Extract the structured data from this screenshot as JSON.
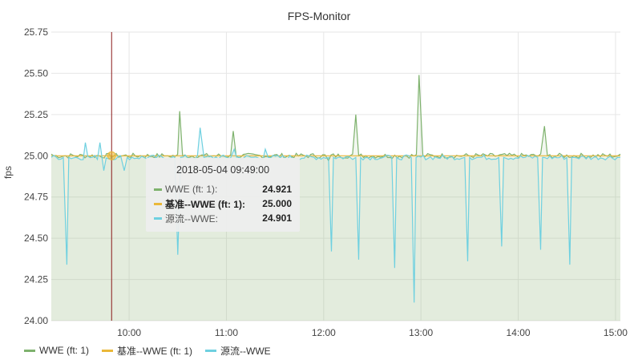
{
  "chart_data": {
    "type": "line",
    "title": "FPS-Monitor",
    "ylabel": "fps",
    "xlabel": "",
    "ylim": [
      24.0,
      25.75
    ],
    "yticks": [
      "24.00",
      "24.25",
      "24.50",
      "24.75",
      "25.00",
      "25.25",
      "25.50",
      "25.75"
    ],
    "xlim_hours": [
      9.2,
      15.05
    ],
    "xticks": [
      {
        "label": "10:00",
        "hour": 10
      },
      {
        "label": "11:00",
        "hour": 11
      },
      {
        "label": "12:00",
        "hour": 12
      },
      {
        "label": "13:00",
        "hour": 13
      },
      {
        "label": "14:00",
        "hour": 14
      },
      {
        "label": "15:00",
        "hour": 15
      }
    ],
    "grid": true,
    "legend_position": "bottom-left",
    "series": [
      {
        "name": "WWE (ft: 1)",
        "color": "#7eb26d",
        "baseline": 25.0,
        "points": [
          [
            9.2,
            25.01
          ],
          [
            10.4,
            25.0
          ],
          [
            10.52,
            25.27
          ],
          [
            10.55,
            25.0
          ],
          [
            11.07,
            25.15
          ],
          [
            11.1,
            25.0
          ],
          [
            12.05,
            24.97
          ],
          [
            12.33,
            25.25
          ],
          [
            12.36,
            25.0
          ],
          [
            12.98,
            25.49
          ],
          [
            13.02,
            25.0
          ],
          [
            14.27,
            25.18
          ],
          [
            14.3,
            25.0
          ],
          [
            15.05,
            25.01
          ]
        ]
      },
      {
        "name": "基准--WWE (ft: 1)",
        "color": "#eab839",
        "baseline": 25.0,
        "points": [
          [
            9.2,
            25.0
          ],
          [
            15.05,
            25.0
          ]
        ]
      },
      {
        "name": "源流--WWE",
        "color": "#6ed0e0",
        "baseline": 24.99,
        "points": [
          [
            9.2,
            24.99
          ],
          [
            9.36,
            24.34
          ],
          [
            9.38,
            24.99
          ],
          [
            9.55,
            25.08
          ],
          [
            9.7,
            25.08
          ],
          [
            9.74,
            24.91
          ],
          [
            9.95,
            24.91
          ],
          [
            9.98,
            24.99
          ],
          [
            10.47,
            24.99
          ],
          [
            10.5,
            24.4
          ],
          [
            10.53,
            24.99
          ],
          [
            10.73,
            25.17
          ],
          [
            10.77,
            24.99
          ],
          [
            11.08,
            25.04
          ],
          [
            11.4,
            25.04
          ],
          [
            11.43,
            24.99
          ],
          [
            12.05,
            24.99
          ],
          [
            12.08,
            24.42
          ],
          [
            12.1,
            24.99
          ],
          [
            12.33,
            24.99
          ],
          [
            12.36,
            24.37
          ],
          [
            12.38,
            24.99
          ],
          [
            12.7,
            24.99
          ],
          [
            12.73,
            24.32
          ],
          [
            12.75,
            24.99
          ],
          [
            12.9,
            24.99
          ],
          [
            12.93,
            24.11
          ],
          [
            12.95,
            24.99
          ],
          [
            13.45,
            24.99
          ],
          [
            13.48,
            24.36
          ],
          [
            13.5,
            24.99
          ],
          [
            13.8,
            24.99
          ],
          [
            13.83,
            24.45
          ],
          [
            13.85,
            24.99
          ],
          [
            14.2,
            24.99
          ],
          [
            14.23,
            24.43
          ],
          [
            14.25,
            24.99
          ],
          [
            14.5,
            24.99
          ],
          [
            14.53,
            24.34
          ],
          [
            14.55,
            24.99
          ],
          [
            15.05,
            24.99
          ]
        ]
      }
    ]
  },
  "cursor": {
    "hour": 9.82,
    "color": "#8b1a1a"
  },
  "tooltip": {
    "time": "2018-05-04 09:49:00",
    "rows": [
      {
        "name": "WWE (ft: 1):",
        "value": "24.921",
        "color": "#7eb26d",
        "bold": false
      },
      {
        "name": "基准--WWE (ft: 1):",
        "value": "25.000",
        "color": "#eab839",
        "bold": true
      },
      {
        "name": "源流--WWE:",
        "value": "24.901",
        "color": "#6ed0e0",
        "bold": false
      }
    ]
  },
  "legend": [
    {
      "label": "WWE (ft: 1)",
      "color": "#7eb26d"
    },
    {
      "label": "基准--WWE (ft: 1)",
      "color": "#eab839"
    },
    {
      "label": "源流--WWE",
      "color": "#6ed0e0"
    }
  ]
}
